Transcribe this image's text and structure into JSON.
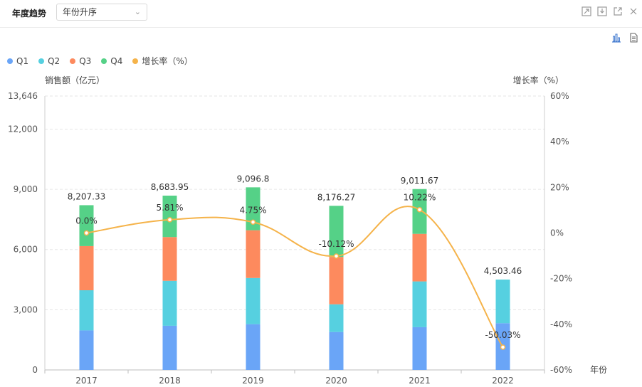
{
  "header": {
    "title": "年度趋势",
    "sort_select": "年份升序"
  },
  "toolbar": {
    "icons": [
      "expand-icon",
      "download-icon",
      "external-link-icon",
      "close-icon"
    ],
    "view_icons": [
      "bar-chart-icon",
      "document-icon"
    ]
  },
  "chart_data": {
    "type": "bar",
    "stacked": true,
    "categories": [
      "2017",
      "2018",
      "2019",
      "2020",
      "2021",
      "2022"
    ],
    "series": [
      {
        "name": "Q1",
        "color": "#6aa5f7",
        "values": [
          1970,
          2200,
          2280,
          1890,
          2130,
          2330
        ]
      },
      {
        "name": "Q2",
        "color": "#56d0e0",
        "values": [
          2000,
          2240,
          2300,
          1380,
          2280,
          2170
        ]
      },
      {
        "name": "Q3",
        "color": "#fd8a5e",
        "values": [
          2200,
          2180,
          2380,
          2360,
          2370,
          0
        ]
      },
      {
        "name": "Q4",
        "color": "#55d187",
        "values": [
          2037.33,
          2063.95,
          2136.8,
          2546.27,
          2231.67,
          3.46
        ]
      }
    ],
    "totals_labels": [
      "8,207.33",
      "8,683.95",
      "9,096.8",
      "8,176.27",
      "9,011.67",
      "4,503.46"
    ],
    "totals": [
      8207.33,
      8683.95,
      9096.8,
      8176.27,
      9011.67,
      4503.46
    ],
    "growth": {
      "name": "增长率（%）",
      "color": "#f5b34a",
      "values": [
        0.0,
        5.81,
        4.75,
        -10.12,
        10.22,
        -50.03
      ],
      "labels": [
        "0.0%",
        "5.81%",
        "4.75%",
        "-10.12%",
        "10.22%",
        "-50.03%"
      ]
    },
    "ylabel_left": "销售额（亿元）",
    "ylabel_right": "增长率（%）",
    "xlabel": "年份",
    "ylim_left": [
      0,
      13646
    ],
    "yticks_left": [
      "0",
      "3,000",
      "6,000",
      "9,000",
      "12,000",
      "13,646"
    ],
    "yticks_left_values": [
      0,
      3000,
      6000,
      9000,
      12000,
      13646
    ],
    "ylim_right": [
      -60,
      60
    ],
    "yticks_right": [
      "-60%",
      "-40%",
      "-20%",
      "0%",
      "20%",
      "40%",
      "60%"
    ],
    "yticks_right_values": [
      -60,
      -40,
      -20,
      0,
      20,
      40,
      60
    ],
    "legend_position": "top-left",
    "grid": true
  }
}
